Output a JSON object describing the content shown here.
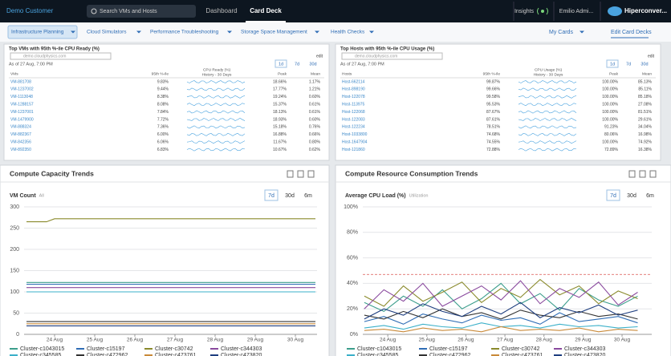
{
  "header": {
    "customer": "Demo Customer",
    "search": "Search VMs and Hosts",
    "tabs": [
      "Dashboard",
      "Card Deck"
    ],
    "insights": "Insights",
    "user": "Emilio Admi...",
    "logo": "Hiperconver..."
  },
  "nav": {
    "items": [
      "Infrastructure Planning",
      "Cloud Simulators",
      "Performance Troubleshooting",
      "Storage Space Management",
      "Health Checks"
    ],
    "my_cards": "My Cards",
    "edit": "Edit Card Decks"
  },
  "tables": [
    {
      "title": "Top VMs with 95th %-ile CPU Ready (%)",
      "filter": "demo.cloudphysics.com",
      "as_of": "As of 27 Aug, 7:00 PM",
      "ranges": [
        "1d",
        "7d",
        "30d"
      ],
      "edit": "edit",
      "columns": [
        "VMs",
        "95th %-ile",
        "CPU Ready (%)",
        "History - 30 Days",
        "Peak",
        "Mean"
      ],
      "rows": [
        [
          "VM-881708",
          "9.83%",
          "18.66%",
          "1.17%"
        ],
        [
          "VM-1237002",
          "9.44%",
          "17.77%",
          "1.21%"
        ],
        [
          "VM-1113048",
          "8.38%",
          "19.24%",
          "0.60%"
        ],
        [
          "VM-1288157",
          "8.08%",
          "15.37%",
          "0.61%"
        ],
        [
          "VM-1237001",
          "7.84%",
          "18.13%",
          "0.61%"
        ],
        [
          "VM-1479900",
          "7.72%",
          "18.93%",
          "0.60%"
        ],
        [
          "VM-888324",
          "7.36%",
          "15.18%",
          "0.76%"
        ],
        [
          "VM-882367",
          "6.00%",
          "16.88%",
          "0.66%"
        ],
        [
          "VM-842356",
          "6.06%",
          "11.67%",
          "0.80%"
        ],
        [
          "VM-892350",
          "6.83%",
          "10.67%",
          "0.62%"
        ]
      ]
    },
    {
      "title": "Top Hosts with 95th %-ile CPU Usage (%)",
      "filter": "demo.cloudphysics.com",
      "as_of": "As of 27 Aug, 7:00 PM",
      "ranges": [
        "1d",
        "7d",
        "30d"
      ],
      "edit": "edit",
      "columns": [
        "Hosts",
        "95th %-ile",
        "CPU Usage (%)",
        "History - 30 Days",
        "Peak",
        "Mean"
      ],
      "rows": [
        [
          "Host-662114",
          "99.87%",
          "100.00%",
          "85.13%"
        ],
        [
          "Host-898190",
          "99.66%",
          "100.00%",
          "85.11%"
        ],
        [
          "Host-122078",
          "99.58%",
          "100.00%",
          "85.18%"
        ],
        [
          "Host-113975",
          "95.53%",
          "100.00%",
          "27.08%"
        ],
        [
          "Host-122068",
          "87.67%",
          "100.00%",
          "81.51%"
        ],
        [
          "Host-122083",
          "87.61%",
          "100.00%",
          "29.61%"
        ],
        [
          "Host-122234",
          "78.51%",
          "91.23%",
          "34.04%"
        ],
        [
          "Host-1033800",
          "74.68%",
          "80.06%",
          "16.98%"
        ],
        [
          "Host-1647904",
          "74.55%",
          "100.00%",
          "74.92%"
        ],
        [
          "Host-121860",
          "72.88%",
          "72.89%",
          "16.38%"
        ]
      ]
    }
  ],
  "cards": [
    {
      "title": "Compute Capacity Trends",
      "ranges": [
        "7d",
        "30d",
        "6m"
      ]
    },
    {
      "title": "Compute Resource Consumption Trends",
      "ranges": [
        "7d",
        "30d",
        "6m"
      ]
    }
  ],
  "chart_data": [
    {
      "type": "line",
      "title": "VM Count",
      "subtitle": "All",
      "grid": true,
      "x": [
        23.3,
        23.8,
        24,
        25,
        26,
        27,
        28,
        29,
        30,
        30.5
      ],
      "xlim": [
        23.24,
        30.54
      ],
      "xticks": [
        {
          "value": 24,
          "label": "24 Aug"
        },
        {
          "value": 25,
          "label": "25 Aug"
        },
        {
          "value": 26,
          "label": "26 Aug"
        },
        {
          "value": 27,
          "label": "27 Aug"
        },
        {
          "value": 28,
          "label": "28 Aug"
        },
        {
          "value": 29,
          "label": "29 Aug"
        },
        {
          "value": 30,
          "label": "30 Aug"
        }
      ],
      "ylim": [
        0,
        300
      ],
      "yticks": [
        0,
        50,
        100,
        150,
        200,
        250,
        300
      ],
      "series": [
        {
          "name": "Cluster-c1043015",
          "color": "#3c9e8c",
          "values": [
            122,
            122,
            122,
            122,
            122,
            122,
            122,
            122,
            122,
            122
          ]
        },
        {
          "name": "Cluster-c15197",
          "color": "#2f6db5",
          "values": [
            118,
            118,
            118,
            118,
            118,
            118,
            118,
            118,
            118,
            118
          ]
        },
        {
          "name": "Cluster-c30742",
          "color": "#8a8a2c",
          "values": [
            265,
            265,
            272,
            272,
            272,
            272,
            272,
            272,
            272,
            272
          ]
        },
        {
          "name": "Cluster-c344303",
          "color": "#8a4a9e",
          "values": [
            110,
            110,
            110,
            110,
            110,
            110,
            110,
            110,
            110,
            110
          ]
        },
        {
          "name": "Cluster-c345585",
          "color": "#3bb0c9",
          "values": [
            100,
            100,
            100,
            100,
            100,
            100,
            100,
            100,
            100,
            100
          ]
        },
        {
          "name": "Cluster-c472962",
          "color": "#333333",
          "values": [
            30,
            30,
            30,
            30,
            30,
            30,
            30,
            30,
            30,
            30
          ]
        },
        {
          "name": "Cluster-c473761",
          "color": "#c98a3a",
          "values": [
            25,
            25,
            25,
            25,
            25,
            25,
            25,
            25,
            25,
            25
          ]
        },
        {
          "name": "Cluster-c473820",
          "color": "#1f3f80",
          "values": [
            20,
            20,
            20,
            20,
            20,
            20,
            20,
            20,
            20,
            20
          ]
        }
      ]
    },
    {
      "type": "line",
      "title": "Average CPU Load (%)",
      "subtitle": "Utilization",
      "grid": true,
      "threshold": 47,
      "x": [
        23.4,
        23.9,
        24.4,
        24.9,
        25.4,
        25.9,
        26.4,
        26.9,
        27.4,
        27.9,
        28.4,
        28.9,
        29.4,
        29.9,
        30.4
      ],
      "xlim": [
        23.36,
        30.76
      ],
      "xticks": [
        {
          "value": 24,
          "label": "24 Aug"
        },
        {
          "value": 25,
          "label": "25 Aug"
        },
        {
          "value": 26,
          "label": "26 Aug"
        },
        {
          "value": 27,
          "label": "27 Aug"
        },
        {
          "value": 28,
          "label": "28 Aug"
        },
        {
          "value": 29,
          "label": "29 Aug"
        },
        {
          "value": 30,
          "label": "30 Aug"
        }
      ],
      "ylim": [
        0,
        100
      ],
      "yticks": [
        {
          "value": 0,
          "label": "0%"
        },
        {
          "value": 20,
          "label": "20%"
        },
        {
          "value": 40,
          "label": "40%"
        },
        {
          "value": 60,
          "label": "60%"
        },
        {
          "value": 80,
          "label": "80%"
        },
        {
          "value": 100,
          "label": "100%"
        }
      ],
      "series": [
        {
          "name": "Cluster-c1043015",
          "color": "#3c9e8c",
          "values": [
            25,
            18,
            30,
            22,
            35,
            20,
            28,
            40,
            24,
            32,
            19,
            36,
            27,
            22,
            30
          ]
        },
        {
          "name": "Cluster-c15197",
          "color": "#2f6db5",
          "values": [
            10,
            14,
            8,
            16,
            12,
            9,
            15,
            11,
            13,
            8,
            17,
            10,
            12,
            14,
            9
          ]
        },
        {
          "name": "Cluster-c30742",
          "color": "#8a8a2c",
          "values": [
            30,
            22,
            38,
            26,
            33,
            41,
            25,
            36,
            29,
            43,
            31,
            38,
            24,
            34,
            28
          ]
        },
        {
          "name": "Cluster-c344303",
          "color": "#8a4a9e",
          "values": [
            20,
            35,
            26,
            40,
            22,
            30,
            38,
            27,
            42,
            24,
            36,
            29,
            41,
            23,
            33
          ]
        },
        {
          "name": "Cluster-c345585",
          "color": "#3bb0c9",
          "values": [
            5,
            7,
            4,
            8,
            6,
            5,
            9,
            6,
            7,
            5,
            8,
            6,
            7,
            5,
            6
          ]
        },
        {
          "name": "Cluster-c472962",
          "color": "#333333",
          "values": [
            15,
            12,
            18,
            13,
            20,
            14,
            17,
            12,
            19,
            15,
            13,
            18,
            14,
            16,
            12
          ]
        },
        {
          "name": "Cluster-c473761",
          "color": "#c98a3a",
          "values": [
            3,
            4,
            2,
            5,
            3,
            4,
            2,
            6,
            3,
            4,
            3,
            5,
            2,
            4,
            3
          ]
        },
        {
          "name": "Cluster-c473820",
          "color": "#1f3f80",
          "values": [
            12,
            20,
            15,
            24,
            18,
            14,
            22,
            16,
            25,
            13,
            21,
            17,
            23,
            15,
            19
          ]
        }
      ]
    }
  ]
}
